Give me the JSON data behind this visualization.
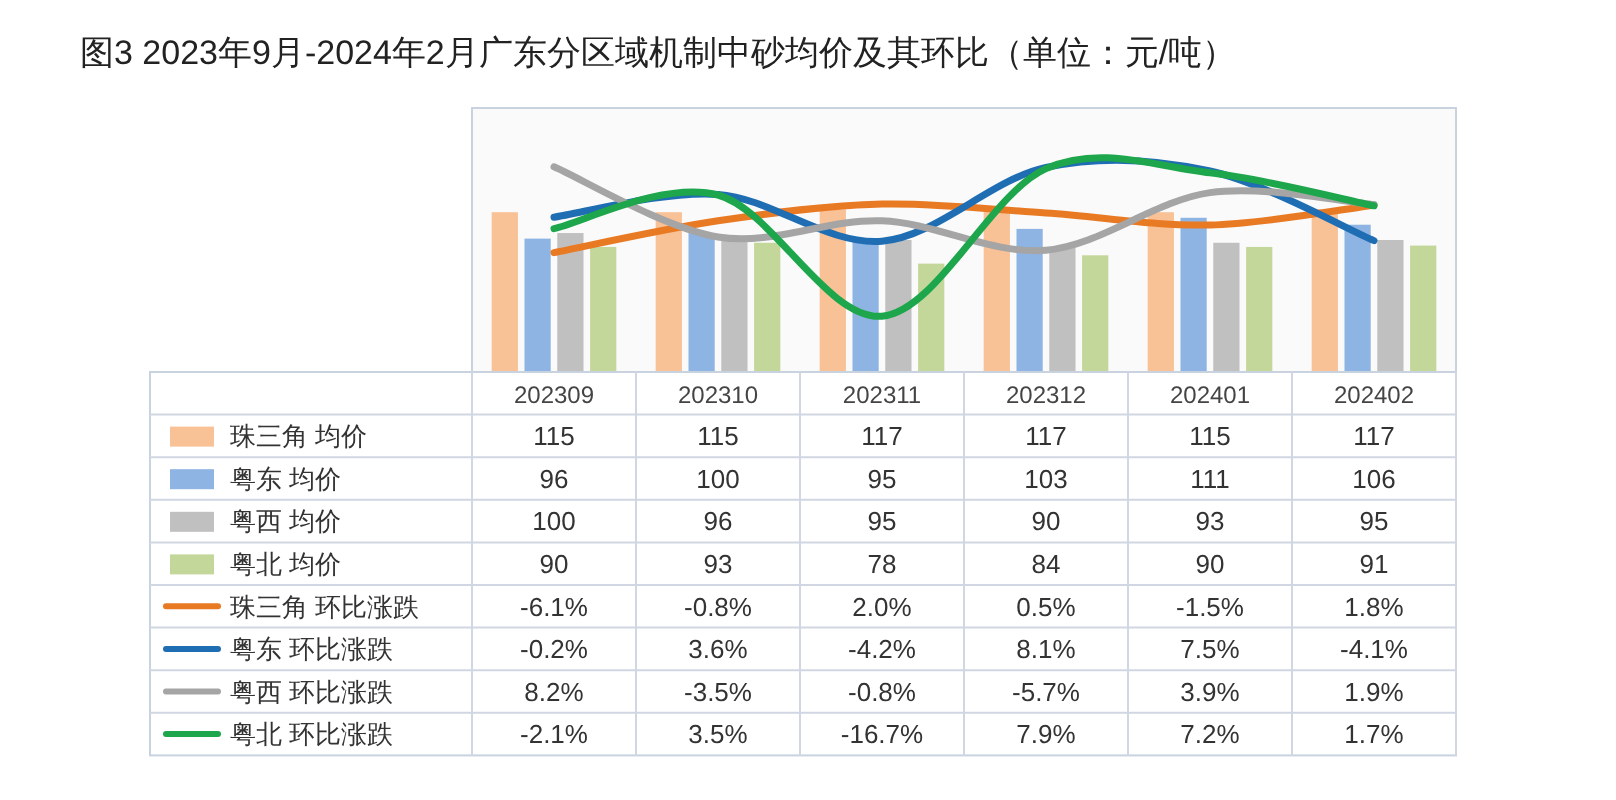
{
  "chart_data": {
    "type": "bar",
    "title": "图3 2023年9月-2024年2月广东分区域机制中砂均价及其环比（单位：元/吨）",
    "categories": [
      "202309",
      "202310",
      "202311",
      "202312",
      "202401",
      "202402"
    ],
    "ylim": [
      0,
      190
    ],
    "y2lim": [
      -26,
      18
    ],
    "legend": "bottom",
    "series": [
      {
        "name": "珠三角 均价",
        "color": "#f9c196",
        "values": [
          115,
          115,
          117,
          117,
          115,
          117
        ],
        "value_labels": [
          "115",
          "115",
          "117",
          "117",
          "115",
          "117"
        ]
      },
      {
        "name": "粤东 均价",
        "color": "#8eb4e3",
        "values": [
          96,
          100,
          95,
          103,
          111,
          106
        ],
        "value_labels": [
          "96",
          "100",
          "95",
          "103",
          "111",
          "106"
        ]
      },
      {
        "name": "粤西 均价",
        "color": "#c0c0c0",
        "values": [
          100,
          96,
          95,
          90,
          93,
          95
        ],
        "value_labels": [
          "100",
          "96",
          "95",
          "90",
          "93",
          "95"
        ]
      },
      {
        "name": "粤北 均价",
        "color": "#c4d79b",
        "values": [
          90,
          93,
          78,
          84,
          90,
          91
        ],
        "value_labels": [
          "90",
          "93",
          "78",
          "84",
          "90",
          "91"
        ]
      },
      {
        "name": "珠三角 环比涨跌",
        "type": "line",
        "axis": "y2",
        "color": "#e97a24",
        "values": [
          -6.1,
          -0.8,
          2.0,
          0.5,
          -1.5,
          1.8
        ],
        "value_labels": [
          "-6.1%",
          "-0.8%",
          "2.0%",
          "0.5%",
          "-1.5%",
          "1.8%"
        ]
      },
      {
        "name": "粤东 环比涨跌",
        "type": "line",
        "axis": "y2",
        "color": "#1f6db3",
        "values": [
          -0.2,
          3.6,
          -4.2,
          8.1,
          7.5,
          -4.1
        ],
        "value_labels": [
          "-0.2%",
          "3.6%",
          "-4.2%",
          "8.1%",
          "7.5%",
          "-4.1%"
        ]
      },
      {
        "name": "粤西 环比涨跌",
        "type": "line",
        "axis": "y2",
        "color": "#a5a5a5",
        "values": [
          8.2,
          -3.5,
          -0.8,
          -5.7,
          3.9,
          1.9
        ],
        "value_labels": [
          "8.2%",
          "-3.5%",
          "-0.8%",
          "-5.7%",
          "3.9%",
          "1.9%"
        ]
      },
      {
        "name": "粤北 环比涨跌",
        "type": "line",
        "axis": "y2",
        "color": "#1ea64c",
        "values": [
          -2.1,
          3.5,
          -16.7,
          7.9,
          7.2,
          1.7
        ],
        "value_labels": [
          "-2.1%",
          "3.5%",
          "-16.7%",
          "7.9%",
          "7.2%",
          "1.7%"
        ]
      }
    ]
  }
}
